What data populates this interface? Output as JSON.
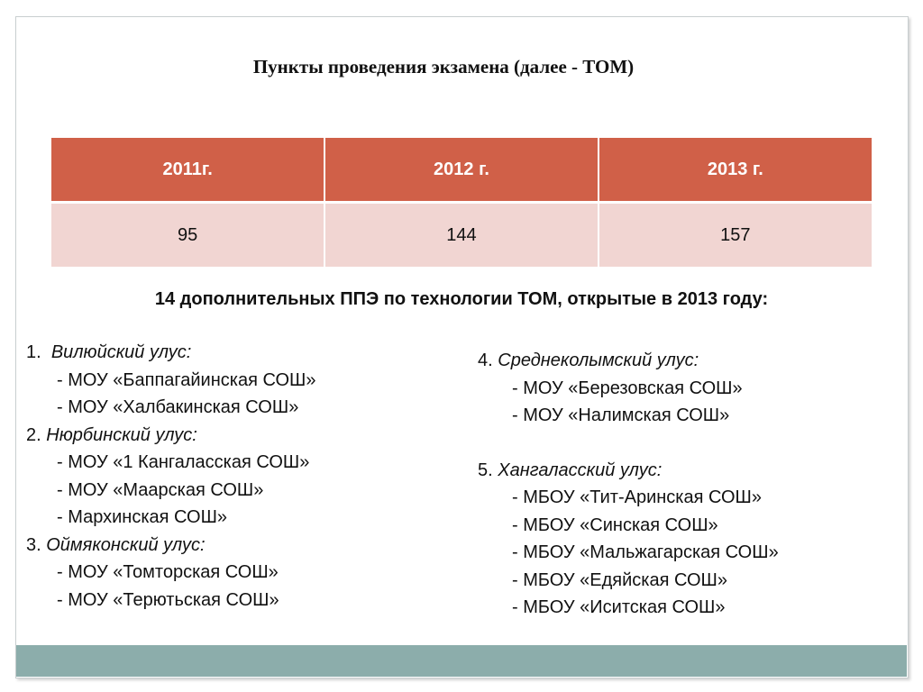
{
  "title": "Пункты проведения экзамена (далее - ТОМ)",
  "table": {
    "headers": [
      "2011г.",
      "2012 г.",
      "2013 г."
    ],
    "values": [
      "95",
      "144",
      "157"
    ]
  },
  "subtitle": "14 дополнительных ППЭ по технологии ТОМ, открытые в 2013 году:",
  "left_column": {
    "regions": [
      {
        "number": "1.",
        "name": "Вилюйский улус:",
        "schools": [
          "- МОУ «Баппагайинская СОШ»",
          "- МОУ «Халбакинская СОШ»"
        ]
      },
      {
        "number": "2.",
        "name": "Нюрбинский улус:",
        "schools": [
          "- МОУ «1 Кангаласская СОШ»",
          "- МОУ «Маарская СОШ»",
          "- Мархинская СОШ»"
        ]
      },
      {
        "number": "3.",
        "name": "Оймяконский улус:",
        "schools": [
          "- МОУ «Томторская СОШ»",
          "- МОУ «Терютьская СОШ»"
        ]
      }
    ]
  },
  "right_column": {
    "regions": [
      {
        "number": "4.",
        "name": "Среднеколымский улус:",
        "schools": [
          "- МОУ «Березовская СОШ»",
          "- МОУ «Налимская СОШ»"
        ]
      },
      {
        "number": "5.",
        "name": "Хангаласский улус:",
        "schools": [
          "- МБОУ «Тит-Аринская СОШ»",
          "- МБОУ «Синская СОШ»",
          "- МБОУ «Мальжагарская СОШ»",
          "- МБОУ «Едяйская СОШ»",
          "- МБОУ «Иситская СОШ»"
        ]
      }
    ]
  },
  "colors": {
    "header_fill": "#d06048",
    "row_fill": "#f1d5d2",
    "bottom_bar": "#8cadab"
  }
}
